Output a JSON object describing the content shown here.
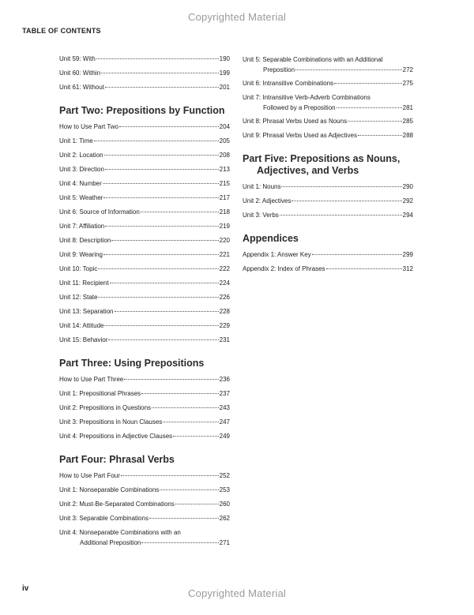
{
  "watermark": "Copyrighted Material",
  "running_head": "TABLE OF CONTENTS",
  "folio": "iv",
  "left_column": [
    {
      "heading": "",
      "entries": [
        {
          "title": "Unit 59: With",
          "page": "190"
        },
        {
          "title": "Unit 60: Within",
          "page": "199"
        },
        {
          "title": "Unit 61: Without",
          "page": "201"
        }
      ]
    },
    {
      "heading": "Part Two: Prepositions by Function",
      "entries": [
        {
          "title": "How to Use Part Two",
          "page": "204"
        },
        {
          "title": "Unit 1: Time",
          "page": "205"
        },
        {
          "title": "Unit 2: Location",
          "page": "208"
        },
        {
          "title": "Unit 3: Direction",
          "page": "213"
        },
        {
          "title": "Unit 4: Number",
          "page": "215"
        },
        {
          "title": "Unit 5: Weather",
          "page": "217"
        },
        {
          "title": "Unit 6: Source of Information",
          "page": "218"
        },
        {
          "title": "Unit 7: Affiliation",
          "page": "219"
        },
        {
          "title": "Unit 8: Description",
          "page": "220"
        },
        {
          "title": "Unit 9: Wearing",
          "page": "221"
        },
        {
          "title": "Unit 10: Topic",
          "page": "222"
        },
        {
          "title": "Unit 11: Recipient",
          "page": "224"
        },
        {
          "title": "Unit 12: State",
          "page": "226"
        },
        {
          "title": "Unit 13: Separation",
          "page": "228"
        },
        {
          "title": "Unit 14: Attitude",
          "page": "229"
        },
        {
          "title": "Unit 15: Behavior",
          "page": "231"
        }
      ]
    },
    {
      "heading": "Part Three: Using Prepositions",
      "entries": [
        {
          "title": "How to Use Part Three",
          "page": "236"
        },
        {
          "title": "Unit 1: Prepositional Phrases",
          "page": "237"
        },
        {
          "title": "Unit 2: Prepositions in Questions",
          "page": "243"
        },
        {
          "title": "Unit 3: Prepositions in Noun Clauses",
          "page": "247"
        },
        {
          "title": "Unit 4: Prepositions in Adjective Clauses",
          "page": "249"
        }
      ]
    },
    {
      "heading": "Part Four: Phrasal Verbs",
      "entries": [
        {
          "title": "How to Use Part Four",
          "page": "252"
        },
        {
          "title": "Unit 1: Nonseparable Combinations",
          "page": "253"
        },
        {
          "title": "Unit 2: Must-Be-Separated Combinations",
          "page": "260"
        },
        {
          "title": "Unit 3: Separable Combinations",
          "page": "262"
        },
        {
          "title": "Unit 4: Nonseparable Combinations  with an",
          "title2": "Additional Preposition",
          "page": "271"
        }
      ]
    }
  ],
  "right_column": [
    {
      "heading": "",
      "entries": [
        {
          "title": "Unit 5: Separable Combinations with an Additional",
          "title2": "Preposition",
          "page": "272"
        },
        {
          "title": "Unit 6: Intransitive Combinations",
          "page": "275"
        },
        {
          "title": "Unit 7: Intransitive Verb-Adverb Combinations",
          "title2": "Followed by a Preposition",
          "page": "281"
        },
        {
          "title": "Unit 8: Phrasal Verbs Used as Nouns",
          "page": "285"
        },
        {
          "title": "Unit 9: Phrasal Verbs Used as Adjectives",
          "page": "288"
        }
      ]
    },
    {
      "heading": "Part Five: Prepositions as Nouns,",
      "heading2": "Adjectives, and Verbs",
      "entries": [
        {
          "title": "Unit 1: Nouns",
          "page": "290"
        },
        {
          "title": "Unit 2: Adjectives",
          "page": "292"
        },
        {
          "title": "Unit 3: Verbs",
          "page": "294"
        }
      ]
    },
    {
      "heading": "Appendices",
      "entries": [
        {
          "title": "Appendix 1: Answer Key",
          "page": "299"
        },
        {
          "title": "Appendix 2: Index of Phrases",
          "page": "312"
        }
      ]
    }
  ]
}
